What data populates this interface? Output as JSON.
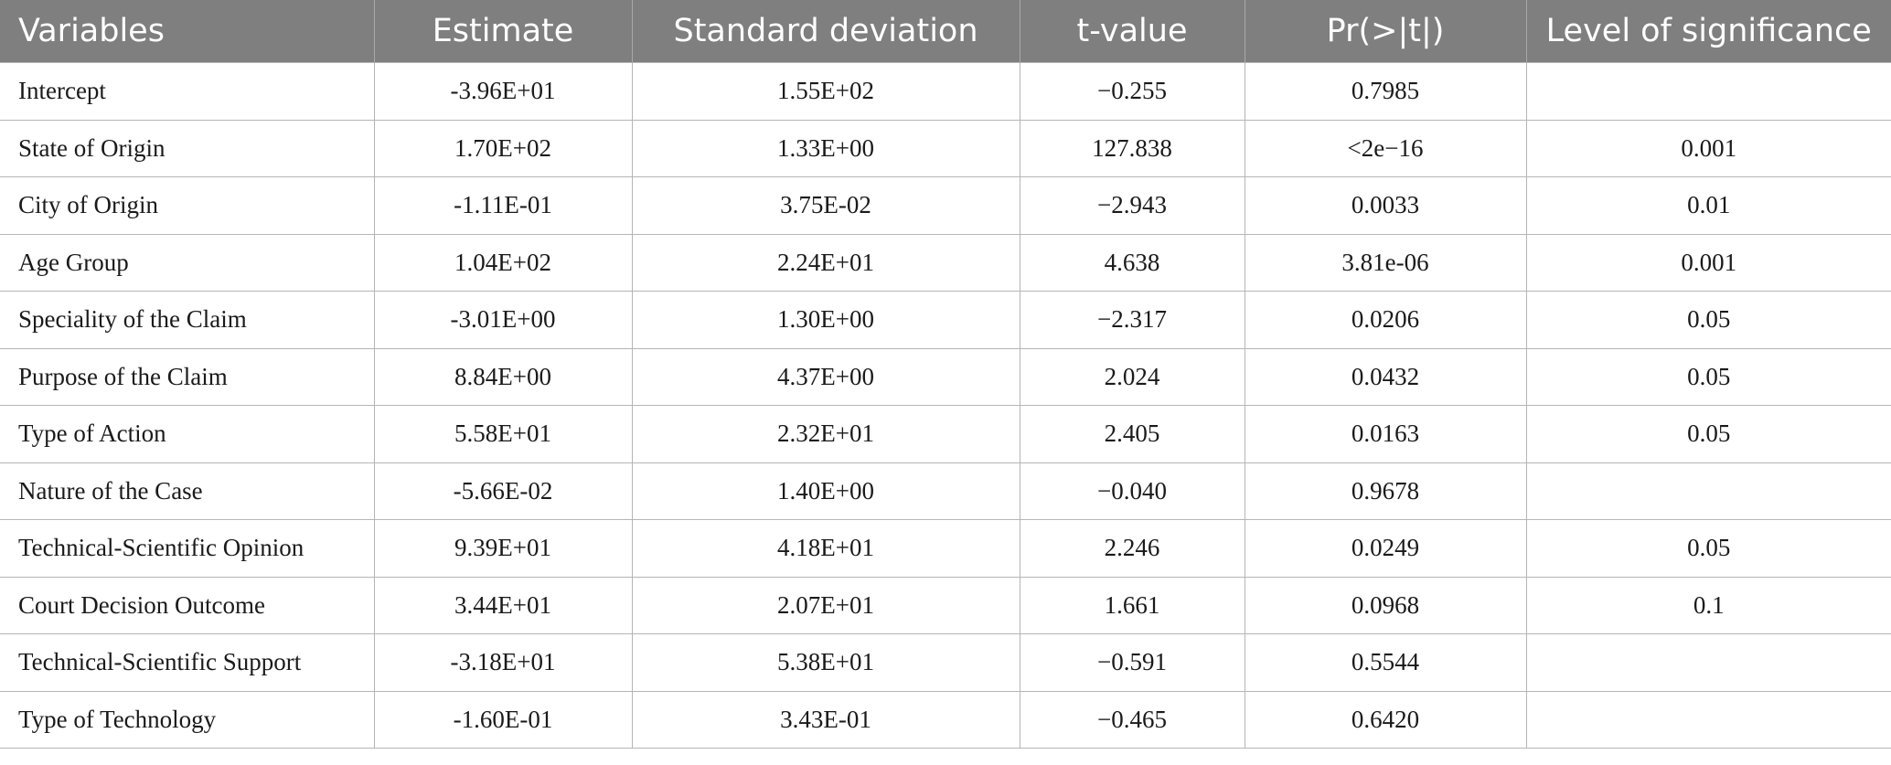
{
  "table": {
    "headers": [
      "Variables",
      "Estimate",
      "Standard deviation",
      "t-value",
      "Pr(>|t|)",
      "Level of significance"
    ],
    "rows": [
      [
        "Intercept",
        "-3.96E+01",
        "1.55E+02",
        "−0.255",
        "0.7985",
        ""
      ],
      [
        "State of Origin",
        "1.70E+02",
        "1.33E+00",
        "127.838",
        "<2e−16",
        "0.001"
      ],
      [
        "City of Origin",
        "-1.11E-01",
        "3.75E-02",
        "−2.943",
        "0.0033",
        "0.01"
      ],
      [
        "Age Group",
        "1.04E+02",
        "2.24E+01",
        "4.638",
        "3.81e-06",
        "0.001"
      ],
      [
        "Speciality of the Claim",
        "-3.01E+00",
        "1.30E+00",
        "−2.317",
        "0.0206",
        "0.05"
      ],
      [
        "Purpose of the Claim",
        "8.84E+00",
        "4.37E+00",
        "2.024",
        "0.0432",
        "0.05"
      ],
      [
        "Type of Action",
        "5.58E+01",
        "2.32E+01",
        "2.405",
        "0.0163",
        "0.05"
      ],
      [
        "Nature of the Case",
        "-5.66E-02",
        "1.40E+00",
        "−0.040",
        "0.9678",
        ""
      ],
      [
        "Technical-Scientific Opinion",
        "9.39E+01",
        "4.18E+01",
        "2.246",
        "0.0249",
        "0.05"
      ],
      [
        "Court Decision Outcome",
        "3.44E+01",
        "2.07E+01",
        "1.661",
        "0.0968",
        "0.1"
      ],
      [
        "Technical-Scientific Support",
        "-3.18E+01",
        "5.38E+01",
        "−0.591",
        "0.5544",
        ""
      ],
      [
        "Type of Technology",
        "-1.60E-01",
        "3.43E-01",
        "−0.465",
        "0.6420",
        ""
      ]
    ]
  }
}
